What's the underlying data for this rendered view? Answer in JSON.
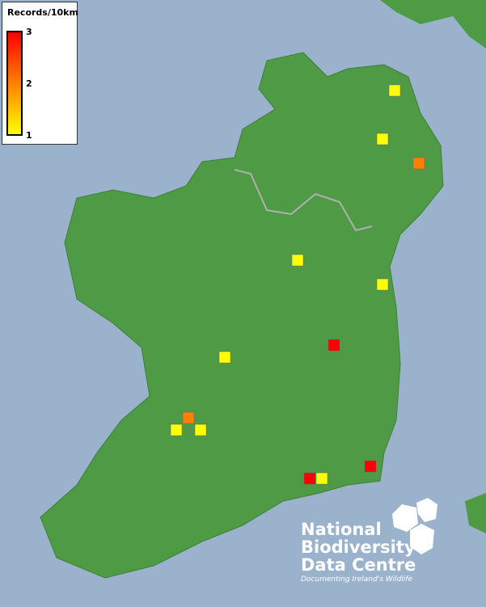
{
  "legend": {
    "title": "Records/10km",
    "ticks": [
      "3",
      "2",
      "1"
    ],
    "gradient": [
      "#ff0000",
      "#ff8000",
      "#ffff00"
    ]
  },
  "records": [
    {
      "value": 1
    },
    {
      "value": 1
    },
    {
      "value": 2
    },
    {
      "value": 1
    },
    {
      "value": 1
    },
    {
      "value": 3
    },
    {
      "value": 1
    },
    {
      "value": 2
    },
    {
      "value": 1
    },
    {
      "value": 1
    },
    {
      "value": 3
    },
    {
      "value": 3
    },
    {
      "value": 1
    }
  ],
  "colors": {
    "sea": "#9ab2cc",
    "land": "#4e9a45",
    "1": "#ffff00",
    "2": "#ff7f00",
    "3": "#ff0000"
  },
  "logo": {
    "line1": "National",
    "line2": "Biodiversity",
    "line3": "Data Centre",
    "tagline": "Documenting Ireland's Wildlife"
  }
}
